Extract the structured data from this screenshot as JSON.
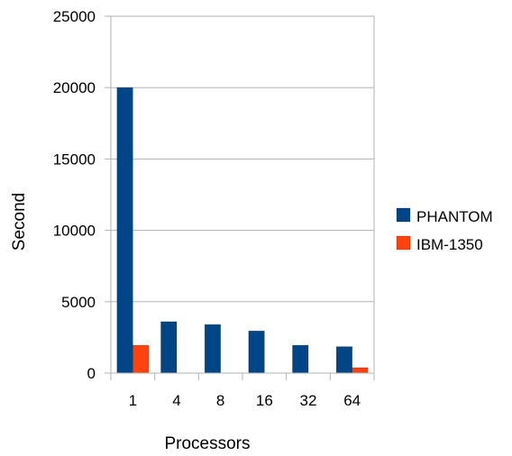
{
  "chart_data": {
    "type": "bar",
    "title": "",
    "xlabel": "Processors",
    "ylabel": "Second",
    "categories": [
      "1",
      "4",
      "8",
      "16",
      "32",
      "64"
    ],
    "ylim": [
      0,
      25000
    ],
    "yticks": [
      0,
      5000,
      10000,
      15000,
      20000,
      25000
    ],
    "grid": true,
    "legend_position": "right",
    "series": [
      {
        "name": "PHANTOM",
        "color": "#004586",
        "values": [
          20000,
          3600,
          3400,
          2950,
          1950,
          1850
        ]
      },
      {
        "name": "IBM-1350",
        "color": "#ff420e",
        "values": [
          1950,
          0,
          0,
          0,
          0,
          380
        ]
      }
    ]
  }
}
